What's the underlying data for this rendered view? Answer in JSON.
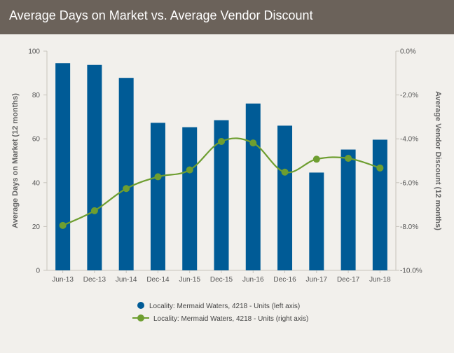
{
  "header": {
    "title": "Average Days on Market vs. Average Vendor Discount"
  },
  "colors": {
    "bar": "#005b96",
    "line": "#6e9e30",
    "header_bg": "#6b625a",
    "page_bg": "#f2f0ec"
  },
  "chart_data": {
    "type": "bar",
    "title": "Average Days on Market vs. Average Vendor Discount",
    "categories": [
      "Jun-13",
      "Dec-13",
      "Jun-14",
      "Dec-14",
      "Jun-15",
      "Dec-15",
      "Jun-16",
      "Dec-16",
      "Jun-17",
      "Dec-17",
      "Jun-18"
    ],
    "series": [
      {
        "name": "Locality: Mermaid Waters, 4218 - Units (left axis)",
        "type": "bar",
        "axis": "left",
        "values": [
          94.5,
          93.7,
          87.8,
          67.3,
          65.3,
          68.5,
          76.1,
          66.0,
          44.6,
          55.1,
          59.6
        ]
      },
      {
        "name": "Locality: Mermaid Waters, 4218 - Units (right axis)",
        "type": "line",
        "axis": "right",
        "values": [
          -7.95,
          -7.28,
          -6.27,
          -5.73,
          -5.42,
          -4.12,
          -4.19,
          -5.52,
          -4.93,
          -4.89,
          -5.33
        ]
      }
    ],
    "ylabel": "Average Days on Market (12 months)",
    "y2label": "Average Vendor Discount (12 months)",
    "ylim": [
      0,
      100
    ],
    "y2lim": [
      -10,
      0
    ],
    "yticks": [
      "0",
      "20",
      "40",
      "60",
      "80",
      "100"
    ],
    "y2ticks": [
      "-10.0%",
      "-8.0%",
      "-6.0%",
      "-4.0%",
      "-2.0%",
      "0.0%"
    ],
    "legend_position": "bottom-center",
    "grid": false
  }
}
